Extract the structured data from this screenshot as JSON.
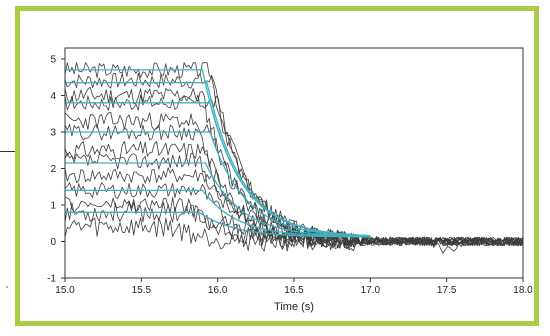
{
  "chart_data": {
    "type": "line",
    "title": "",
    "xlabel": "Time (s)",
    "ylabel": "",
    "xlim": [
      15.0,
      18.0
    ],
    "ylim": [
      -1,
      5.3
    ],
    "x_ticks": [
      "15.0",
      "15.5",
      "16.0",
      "16.5",
      "17.0",
      "17.5",
      "18.0"
    ],
    "y_ticks": [
      "-1",
      "0",
      "1",
      "2",
      "3",
      "4",
      "5"
    ],
    "grid": false,
    "legend": "none",
    "colors": {
      "frame": "#a9cd46",
      "fit": "#3fb1c1",
      "data": "#3c3c3c"
    },
    "fit_series": [
      {
        "start_y": 4.7,
        "drop_x": 15.9,
        "end_x": 17.0
      },
      {
        "start_y": 4.35,
        "drop_x": 15.93,
        "end_x": 17.0
      },
      {
        "start_y": 3.8,
        "drop_x": 15.95,
        "end_x": 17.0
      },
      {
        "start_y": 3.0,
        "drop_x": 15.95,
        "end_x": 17.0
      },
      {
        "start_y": 2.15,
        "drop_x": 15.92,
        "end_x": 17.0
      },
      {
        "start_y": 1.4,
        "drop_x": 15.9,
        "end_x": 17.0
      },
      {
        "start_y": 0.8,
        "drop_x": 15.88,
        "end_x": 17.0
      }
    ],
    "noisy_series": [
      {
        "level": 4.7,
        "drop_x": 15.95,
        "noise": 0.22,
        "seed": 3
      },
      {
        "level": 4.4,
        "drop_x": 15.98,
        "noise": 0.22,
        "seed": 7
      },
      {
        "level": 4.0,
        "drop_x": 15.9,
        "noise": 0.25,
        "seed": 11
      },
      {
        "level": 3.8,
        "drop_x": 16.0,
        "noise": 0.22,
        "seed": 17
      },
      {
        "level": 3.3,
        "drop_x": 15.85,
        "noise": 0.25,
        "seed": 23
      },
      {
        "level": 3.0,
        "drop_x": 15.97,
        "noise": 0.22,
        "seed": 29
      },
      {
        "level": 2.5,
        "drop_x": 15.92,
        "noise": 0.25,
        "seed": 31
      },
      {
        "level": 2.2,
        "drop_x": 15.88,
        "noise": 0.22,
        "seed": 37
      },
      {
        "level": 1.8,
        "drop_x": 15.95,
        "noise": 0.22,
        "seed": 41
      },
      {
        "level": 1.4,
        "drop_x": 15.9,
        "noise": 0.22,
        "seed": 43
      },
      {
        "level": 1.0,
        "drop_x": 15.8,
        "noise": 0.22,
        "seed": 47
      },
      {
        "level": 0.8,
        "drop_x": 15.85,
        "noise": 0.28,
        "seed": 53
      },
      {
        "level": 0.4,
        "drop_x": 15.7,
        "noise": 0.3,
        "seed": 59
      }
    ],
    "tail": {
      "x_start": 16.9,
      "x_end": 18.0,
      "y_range": [
        -0.3,
        0.2
      ]
    }
  }
}
